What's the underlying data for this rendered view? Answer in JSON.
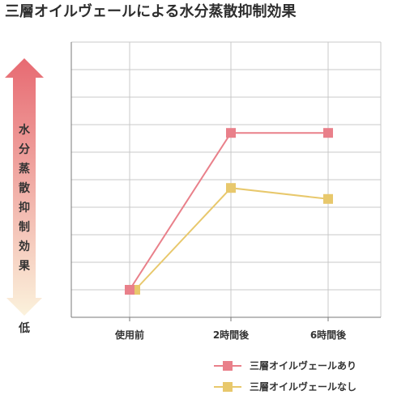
{
  "chart_data": {
    "type": "line",
    "title": "三層オイルヴェールによる水分蒸散抑制効果",
    "ylabel": "水分蒸散抑制効果",
    "ylabel_low": "低",
    "categories": [
      "使用前",
      "2時間後",
      "6時間後"
    ],
    "ylim": [
      0,
      10
    ],
    "grid": true,
    "legend_position": "bottom-right",
    "series": [
      {
        "name": "三層オイルヴェールあり",
        "color": "#e9808a",
        "values": [
          1.0,
          6.7,
          6.7
        ]
      },
      {
        "name": "三層オイルヴェールなし",
        "color": "#e8c86c",
        "values": [
          1.0,
          4.7,
          4.3
        ]
      }
    ]
  },
  "colors": {
    "arrow_top": "#e76a72",
    "arrow_bottom": "#fbf2dc",
    "axis": "#7a7a7a",
    "grid": "#c8c8c8"
  }
}
